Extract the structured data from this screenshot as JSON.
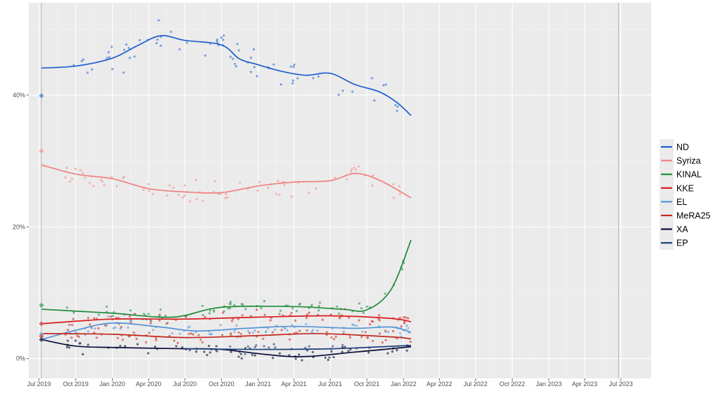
{
  "chart_data": {
    "type": "scatter",
    "subtype": "scatter with LOESS trend lines (opinion polls)",
    "x_axis": {
      "type": "date",
      "range": [
        "2019-06-05",
        "2023-09-15"
      ],
      "ticks": [
        {
          "date": "2019-07-01",
          "label": "Jul 2019"
        },
        {
          "date": "2019-10-01",
          "label": "Oct 2019"
        },
        {
          "date": "2020-01-01",
          "label": "Jan 2020"
        },
        {
          "date": "2020-04-01",
          "label": "Apr 2020"
        },
        {
          "date": "2020-07-01",
          "label": "Jul 2020"
        },
        {
          "date": "2020-10-01",
          "label": "Oct 2020"
        },
        {
          "date": "2021-01-01",
          "label": "Jan 2021"
        },
        {
          "date": "2021-04-01",
          "label": "Apr 2021"
        },
        {
          "date": "2021-07-01",
          "label": "Jul 2021"
        },
        {
          "date": "2021-10-01",
          "label": "Oct 2021"
        },
        {
          "date": "2022-01-01",
          "label": "Jan 2022"
        },
        {
          "date": "2022-04-01",
          "label": "Apr 2022"
        },
        {
          "date": "2022-07-01",
          "label": "Jul 2022"
        },
        {
          "date": "2022-10-01",
          "label": "Oct 2022"
        },
        {
          "date": "2023-01-01",
          "label": "Jan 2023"
        },
        {
          "date": "2023-04-01",
          "label": "Apr 2023"
        },
        {
          "date": "2023-07-01",
          "label": "Jul 2023"
        }
      ],
      "vertical_reference_lines": [
        "2019-07-07",
        "2023-06-25"
      ]
    },
    "y_axis": {
      "range": [
        -3,
        54
      ],
      "ticks": [
        {
          "value": 0,
          "label": "0%"
        },
        {
          "value": 20,
          "label": "20%"
        },
        {
          "value": 40,
          "label": "40%"
        }
      ]
    },
    "grid": true,
    "legend_position": "right",
    "series": [
      {
        "name": "ND",
        "color": "#1f5fcc",
        "point_color": "#5b8fd9",
        "election_result": 39.9,
        "trend": [
          [
            "2019-07-07",
            44.1
          ],
          [
            "2019-10-01",
            44.4
          ],
          [
            "2020-01-01",
            45.6
          ],
          [
            "2020-03-01",
            47.4
          ],
          [
            "2020-05-01",
            49.0
          ],
          [
            "2020-07-01",
            48.3
          ],
          [
            "2020-10-01",
            47.6
          ],
          [
            "2020-11-15",
            45.5
          ],
          [
            "2021-01-01",
            44.6
          ],
          [
            "2021-03-01",
            43.6
          ],
          [
            "2021-05-01",
            43.0
          ],
          [
            "2021-07-01",
            43.3
          ],
          [
            "2021-09-01",
            41.6
          ],
          [
            "2021-11-01",
            40.5
          ],
          [
            "2021-12-15",
            38.9
          ],
          [
            "2022-01-20",
            36.9
          ]
        ]
      },
      {
        "name": "Syriza",
        "color": "#f08080",
        "point_color": "#f5a3a3",
        "election_result": 31.5,
        "trend": [
          [
            "2019-07-07",
            29.4
          ],
          [
            "2019-10-01",
            28.0
          ],
          [
            "2020-01-01",
            27.3
          ],
          [
            "2020-04-01",
            25.8
          ],
          [
            "2020-07-01",
            25.3
          ],
          [
            "2020-10-01",
            25.2
          ],
          [
            "2021-01-01",
            26.2
          ],
          [
            "2021-04-01",
            26.8
          ],
          [
            "2021-07-01",
            27.0
          ],
          [
            "2021-09-01",
            28.1
          ],
          [
            "2021-11-01",
            27.1
          ],
          [
            "2022-01-20",
            24.4
          ]
        ]
      },
      {
        "name": "KINAL",
        "color": "#1f8b3a",
        "point_color": "#55a86b",
        "election_result": 8.1,
        "trend": [
          [
            "2019-07-07",
            7.5
          ],
          [
            "2020-01-01",
            6.9
          ],
          [
            "2020-06-01",
            6.3
          ],
          [
            "2020-10-01",
            7.8
          ],
          [
            "2021-04-01",
            7.9
          ],
          [
            "2021-08-01",
            7.5
          ],
          [
            "2021-10-01",
            7.4
          ],
          [
            "2021-12-01",
            10.5
          ],
          [
            "2022-01-20",
            18.0
          ]
        ]
      },
      {
        "name": "KKE",
        "color": "#d91b1b",
        "point_color": "#e05454",
        "election_result": 5.3,
        "trend": [
          [
            "2019-07-07",
            5.3
          ],
          [
            "2020-01-01",
            6.0
          ],
          [
            "2020-07-01",
            6.0
          ],
          [
            "2021-01-01",
            6.3
          ],
          [
            "2021-07-01",
            6.5
          ],
          [
            "2021-12-01",
            6.1
          ],
          [
            "2022-01-20",
            5.6
          ]
        ]
      },
      {
        "name": "EL",
        "color": "#5593d6",
        "point_color": "#78aee0",
        "election_result": 3.7,
        "trend": [
          [
            "2019-07-07",
            2.9
          ],
          [
            "2019-10-01",
            4.3
          ],
          [
            "2020-01-01",
            5.4
          ],
          [
            "2020-05-01",
            4.8
          ],
          [
            "2020-08-01",
            4.2
          ],
          [
            "2020-12-01",
            4.6
          ],
          [
            "2021-04-01",
            4.9
          ],
          [
            "2021-09-01",
            4.6
          ],
          [
            "2021-12-01",
            4.8
          ],
          [
            "2022-01-20",
            4.0
          ]
        ]
      },
      {
        "name": "MeRA25",
        "color": "#c0281e",
        "point_color": "#d26050",
        "election_result": 3.4,
        "trend": [
          [
            "2019-07-07",
            3.8
          ],
          [
            "2020-01-01",
            3.7
          ],
          [
            "2020-07-01",
            3.2
          ],
          [
            "2021-01-01",
            3.5
          ],
          [
            "2021-06-01",
            3.8
          ],
          [
            "2021-12-01",
            3.3
          ],
          [
            "2022-01-20",
            3.0
          ]
        ]
      },
      {
        "name": "XA",
        "color": "#0a0e3a",
        "point_color": "#3a3f5c",
        "election_result": 2.9,
        "trend": [
          [
            "2019-07-07",
            2.9
          ],
          [
            "2019-10-01",
            1.9
          ],
          [
            "2020-01-01",
            1.7
          ],
          [
            "2020-07-01",
            1.5
          ],
          [
            "2020-10-01",
            1.4
          ],
          [
            "2021-04-01",
            0.3
          ],
          [
            "2021-09-01",
            1.0
          ],
          [
            "2022-01-20",
            1.8
          ]
        ]
      },
      {
        "name": "EP",
        "color": "#1c3f7a",
        "point_color": "#4a6a99",
        "trend": [
          [
            "2020-07-01",
            1.5
          ],
          [
            "2021-01-01",
            1.4
          ],
          [
            "2021-07-01",
            1.5
          ],
          [
            "2022-01-20",
            2.0
          ]
        ]
      }
    ]
  }
}
